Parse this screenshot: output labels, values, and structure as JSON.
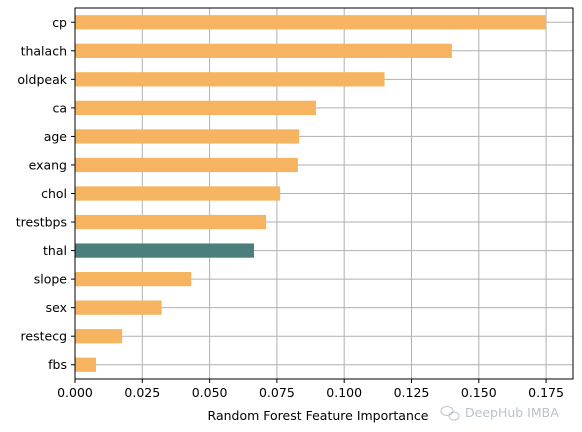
{
  "chart_data": {
    "type": "bar",
    "orientation": "horizontal",
    "categories": [
      "cp",
      "thalach",
      "oldpeak",
      "ca",
      "age",
      "exang",
      "chol",
      "trestbps",
      "thal",
      "slope",
      "sex",
      "restecg",
      "fbs"
    ],
    "values": [
      0.175,
      0.14,
      0.115,
      0.0895,
      0.0833,
      0.0828,
      0.0762,
      0.071,
      0.0665,
      0.0432,
      0.0322,
      0.0175,
      0.0078
    ],
    "highlight_category": "thal",
    "xlabel": "Random Forest Feature Importance",
    "ylabel": "",
    "xlim": [
      0,
      0.185
    ],
    "xticks": [
      0.0,
      0.025,
      0.05,
      0.075,
      0.1,
      0.125,
      0.15,
      0.175
    ],
    "xtick_labels": [
      "0.000",
      "0.025",
      "0.050",
      "0.075",
      "0.100",
      "0.125",
      "0.150",
      "0.175"
    ],
    "grid": true,
    "colors": {
      "bar": "#f6b461",
      "highlight": "#4a7f7d",
      "grid": "#b0b0b0"
    }
  },
  "watermark": {
    "text": "DeepHub IMBA",
    "icon": "wechat-icon"
  }
}
